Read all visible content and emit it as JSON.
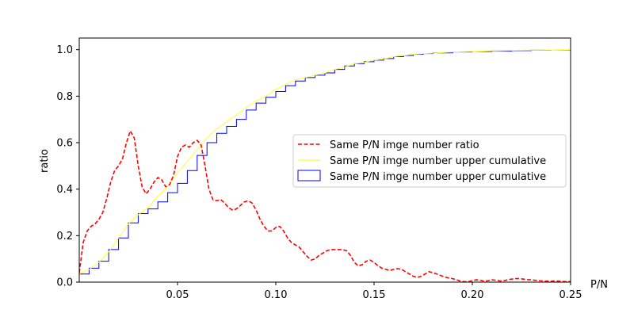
{
  "chart_data": {
    "type": "line",
    "title": "",
    "xlabel": "P/N",
    "ylabel": "ratio",
    "xlim": [
      0.0,
      0.25
    ],
    "ylim": [
      0.0,
      1.05
    ],
    "grid": false,
    "legend_position": "center-right",
    "x_ticks": [
      {
        "value": 0.05,
        "label": "0.05"
      },
      {
        "value": 0.1,
        "label": "0.10"
      },
      {
        "value": 0.15,
        "label": "0.15"
      },
      {
        "value": 0.2,
        "label": "0.20"
      },
      {
        "value": 0.25,
        "label": "0.25"
      }
    ],
    "y_ticks": [
      {
        "value": 0.0,
        "label": "0.0"
      },
      {
        "value": 0.2,
        "label": "0.2"
      },
      {
        "value": 0.4,
        "label": "0.4"
      },
      {
        "value": 0.6,
        "label": "0.6"
      },
      {
        "value": 0.8,
        "label": "0.8"
      },
      {
        "value": 1.0,
        "label": "1.0"
      }
    ],
    "series": [
      {
        "name": "Same P/N imge number ratio",
        "kind": "dashed-line",
        "color": "#ff0000",
        "points": [
          [
            0.0,
            0.04
          ],
          [
            0.002,
            0.17
          ],
          [
            0.004,
            0.22
          ],
          [
            0.006,
            0.24
          ],
          [
            0.008,
            0.25
          ],
          [
            0.01,
            0.27
          ],
          [
            0.012,
            0.3
          ],
          [
            0.014,
            0.36
          ],
          [
            0.016,
            0.43
          ],
          [
            0.018,
            0.48
          ],
          [
            0.02,
            0.5
          ],
          [
            0.022,
            0.53
          ],
          [
            0.024,
            0.6
          ],
          [
            0.026,
            0.65
          ],
          [
            0.028,
            0.62
          ],
          [
            0.03,
            0.5
          ],
          [
            0.032,
            0.41
          ],
          [
            0.034,
            0.38
          ],
          [
            0.036,
            0.4
          ],
          [
            0.038,
            0.43
          ],
          [
            0.04,
            0.45
          ],
          [
            0.042,
            0.44
          ],
          [
            0.044,
            0.41
          ],
          [
            0.046,
            0.42
          ],
          [
            0.048,
            0.46
          ],
          [
            0.05,
            0.54
          ],
          [
            0.052,
            0.58
          ],
          [
            0.054,
            0.59
          ],
          [
            0.056,
            0.58
          ],
          [
            0.058,
            0.6
          ],
          [
            0.06,
            0.61
          ],
          [
            0.062,
            0.59
          ],
          [
            0.064,
            0.5
          ],
          [
            0.066,
            0.4
          ],
          [
            0.068,
            0.355
          ],
          [
            0.07,
            0.35
          ],
          [
            0.072,
            0.355
          ],
          [
            0.074,
            0.34
          ],
          [
            0.076,
            0.32
          ],
          [
            0.078,
            0.31
          ],
          [
            0.08,
            0.315
          ],
          [
            0.082,
            0.33
          ],
          [
            0.084,
            0.345
          ],
          [
            0.086,
            0.35
          ],
          [
            0.088,
            0.34
          ],
          [
            0.09,
            0.31
          ],
          [
            0.092,
            0.27
          ],
          [
            0.094,
            0.24
          ],
          [
            0.096,
            0.22
          ],
          [
            0.098,
            0.22
          ],
          [
            0.1,
            0.235
          ],
          [
            0.102,
            0.24
          ],
          [
            0.104,
            0.22
          ],
          [
            0.106,
            0.19
          ],
          [
            0.108,
            0.17
          ],
          [
            0.11,
            0.16
          ],
          [
            0.112,
            0.15
          ],
          [
            0.114,
            0.13
          ],
          [
            0.116,
            0.11
          ],
          [
            0.118,
            0.095
          ],
          [
            0.12,
            0.1
          ],
          [
            0.122,
            0.115
          ],
          [
            0.124,
            0.125
          ],
          [
            0.126,
            0.135
          ],
          [
            0.128,
            0.14
          ],
          [
            0.13,
            0.14
          ],
          [
            0.132,
            0.14
          ],
          [
            0.134,
            0.14
          ],
          [
            0.136,
            0.135
          ],
          [
            0.138,
            0.115
          ],
          [
            0.14,
            0.085
          ],
          [
            0.142,
            0.07
          ],
          [
            0.144,
            0.075
          ],
          [
            0.146,
            0.09
          ],
          [
            0.148,
            0.095
          ],
          [
            0.15,
            0.085
          ],
          [
            0.152,
            0.07
          ],
          [
            0.154,
            0.06
          ],
          [
            0.156,
            0.055
          ],
          [
            0.158,
            0.05
          ],
          [
            0.16,
            0.055
          ],
          [
            0.162,
            0.058
          ],
          [
            0.164,
            0.055
          ],
          [
            0.166,
            0.045
          ],
          [
            0.168,
            0.035
          ],
          [
            0.17,
            0.025
          ],
          [
            0.172,
            0.02
          ],
          [
            0.174,
            0.025
          ],
          [
            0.176,
            0.035
          ],
          [
            0.178,
            0.045
          ],
          [
            0.18,
            0.04
          ],
          [
            0.182,
            0.035
          ],
          [
            0.184,
            0.028
          ],
          [
            0.186,
            0.022
          ],
          [
            0.188,
            0.018
          ],
          [
            0.19,
            0.015
          ],
          [
            0.192,
            0.01
          ],
          [
            0.194,
            0.004
          ],
          [
            0.196,
            0.002
          ],
          [
            0.198,
            0.002
          ],
          [
            0.2,
            0.006
          ],
          [
            0.202,
            0.01
          ],
          [
            0.204,
            0.008
          ],
          [
            0.206,
            0.004
          ],
          [
            0.208,
            0.006
          ],
          [
            0.21,
            0.01
          ],
          [
            0.212,
            0.008
          ],
          [
            0.214,
            0.005
          ],
          [
            0.216,
            0.006
          ],
          [
            0.218,
            0.01
          ],
          [
            0.22,
            0.013
          ],
          [
            0.222,
            0.015
          ],
          [
            0.224,
            0.015
          ],
          [
            0.226,
            0.013
          ],
          [
            0.228,
            0.011
          ],
          [
            0.23,
            0.01
          ],
          [
            0.232,
            0.008
          ],
          [
            0.234,
            0.006
          ],
          [
            0.236,
            0.005
          ],
          [
            0.238,
            0.004
          ],
          [
            0.24,
            0.004
          ],
          [
            0.242,
            0.005
          ],
          [
            0.244,
            0.004
          ],
          [
            0.246,
            0.003
          ],
          [
            0.248,
            0.002
          ],
          [
            0.25,
            0.003
          ]
        ]
      },
      {
        "name": "Same P/N imge number upper cumulative",
        "kind": "line",
        "color": "#ffff33",
        "points": [
          [
            0.0,
            0.035
          ],
          [
            0.005,
            0.055
          ],
          [
            0.01,
            0.085
          ],
          [
            0.015,
            0.13
          ],
          [
            0.02,
            0.19
          ],
          [
            0.025,
            0.25
          ],
          [
            0.03,
            0.29
          ],
          [
            0.035,
            0.32
          ],
          [
            0.04,
            0.37
          ],
          [
            0.045,
            0.41
          ],
          [
            0.05,
            0.47
          ],
          [
            0.055,
            0.52
          ],
          [
            0.06,
            0.57
          ],
          [
            0.065,
            0.62
          ],
          [
            0.07,
            0.66
          ],
          [
            0.075,
            0.69
          ],
          [
            0.08,
            0.72
          ],
          [
            0.085,
            0.75
          ],
          [
            0.09,
            0.78
          ],
          [
            0.095,
            0.8
          ],
          [
            0.1,
            0.83
          ],
          [
            0.105,
            0.85
          ],
          [
            0.11,
            0.87
          ],
          [
            0.115,
            0.88
          ],
          [
            0.12,
            0.89
          ],
          [
            0.125,
            0.9
          ],
          [
            0.13,
            0.915
          ],
          [
            0.135,
            0.925
          ],
          [
            0.14,
            0.94
          ],
          [
            0.145,
            0.945
          ],
          [
            0.15,
            0.955
          ],
          [
            0.155,
            0.96
          ],
          [
            0.16,
            0.97
          ],
          [
            0.165,
            0.975
          ],
          [
            0.17,
            0.98
          ],
          [
            0.175,
            0.983
          ],
          [
            0.18,
            0.985
          ],
          [
            0.19,
            0.99
          ],
          [
            0.2,
            0.992
          ],
          [
            0.21,
            0.995
          ],
          [
            0.22,
            0.997
          ],
          [
            0.23,
            0.998
          ],
          [
            0.24,
            0.999
          ],
          [
            0.25,
            1.0
          ]
        ]
      },
      {
        "name": "Same P/N imge number upper cumulative",
        "kind": "histogram-step",
        "color": "#0000ff",
        "bin_edges": [
          0.0,
          0.005,
          0.01,
          0.015,
          0.02,
          0.025,
          0.03,
          0.035,
          0.04,
          0.045,
          0.05,
          0.055,
          0.06,
          0.065,
          0.07,
          0.075,
          0.08,
          0.085,
          0.09,
          0.095,
          0.1,
          0.105,
          0.11,
          0.115,
          0.12,
          0.125,
          0.13,
          0.135,
          0.14,
          0.145,
          0.15,
          0.155,
          0.16,
          0.165,
          0.17,
          0.175,
          0.18,
          0.19,
          0.2,
          0.21,
          0.22,
          0.23,
          0.24,
          0.25
        ],
        "values": [
          0.035,
          0.06,
          0.09,
          0.14,
          0.19,
          0.255,
          0.295,
          0.315,
          0.345,
          0.385,
          0.425,
          0.48,
          0.545,
          0.6,
          0.64,
          0.67,
          0.7,
          0.74,
          0.77,
          0.795,
          0.82,
          0.845,
          0.865,
          0.88,
          0.89,
          0.9,
          0.915,
          0.93,
          0.94,
          0.948,
          0.955,
          0.962,
          0.97,
          0.975,
          0.98,
          0.983,
          0.986,
          0.99,
          0.992,
          0.994,
          0.996,
          0.998,
          0.999
        ]
      }
    ],
    "legend": [
      {
        "label": "Same P/N imge number ratio",
        "swatch": "dashed-line",
        "color": "#ff0000"
      },
      {
        "label": "Same P/N imge number upper cumulative",
        "swatch": "line",
        "color": "#ffff33"
      },
      {
        "label": "Same P/N imge number upper cumulative",
        "swatch": "box",
        "color": "#0000ff"
      }
    ]
  }
}
